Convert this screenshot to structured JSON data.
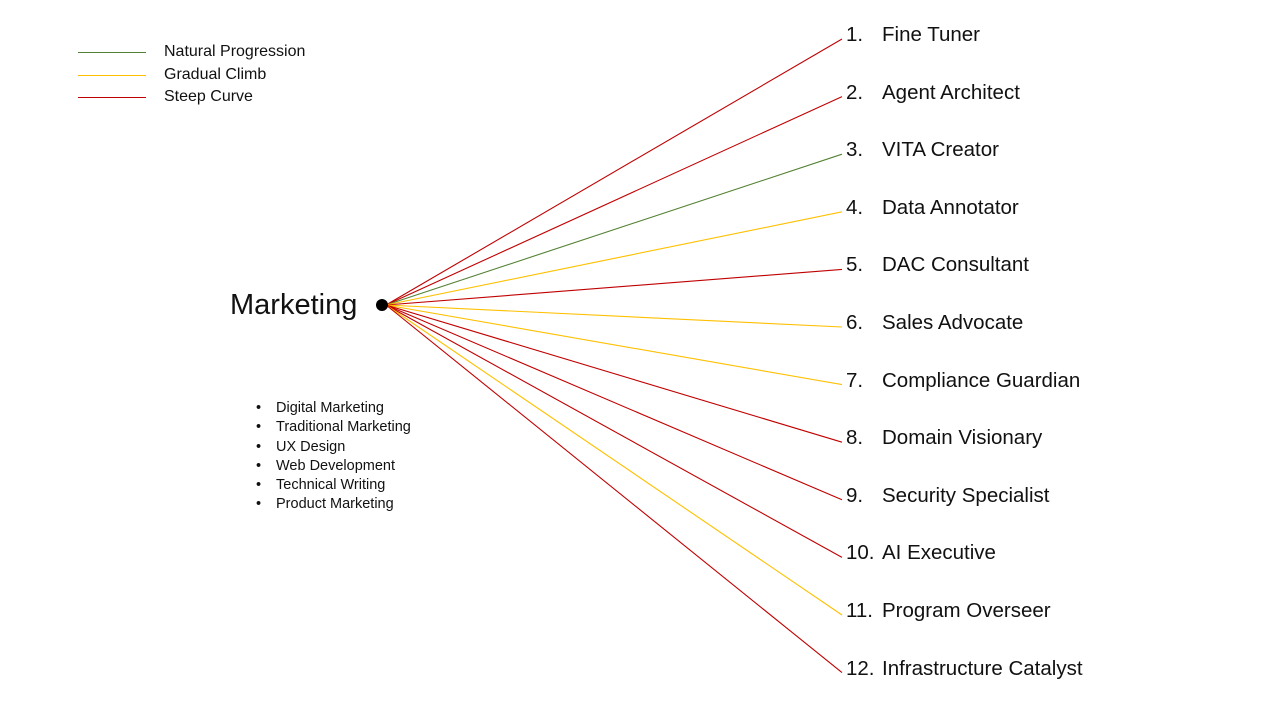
{
  "legend": [
    {
      "label": "Natural Progression",
      "color": "#548235"
    },
    {
      "label": "Gradual Climb",
      "color": "#FFC000"
    },
    {
      "label": "Steep Curve",
      "color": "#C00000"
    }
  ],
  "center": {
    "label": "Marketing"
  },
  "skills": {
    "bullet": "•",
    "items": [
      "Digital Marketing",
      "Traditional Marketing",
      "UX Design",
      "Web Development",
      "Technical Writing",
      "Product Marketing"
    ]
  },
  "roles": [
    {
      "number": "1.",
      "name": "Fine Tuner",
      "curve": "Steep Curve"
    },
    {
      "number": "2.",
      "name": "Agent Architect",
      "curve": "Steep Curve"
    },
    {
      "number": "3.",
      "name": "VITA Creator",
      "curve": "Natural Progression"
    },
    {
      "number": "4.",
      "name": "Data Annotator",
      "curve": "Gradual Climb"
    },
    {
      "number": "5.",
      "name": "DAC Consultant",
      "curve": "Steep Curve"
    },
    {
      "number": "6.",
      "name": "Sales Advocate",
      "curve": "Gradual Climb"
    },
    {
      "number": "7.",
      "name": "Compliance Guardian",
      "curve": "Gradual Climb"
    },
    {
      "number": "8.",
      "name": "Domain Visionary",
      "curve": "Steep Curve"
    },
    {
      "number": "9.",
      "name": "Security Specialist",
      "curve": "Steep Curve"
    },
    {
      "number": "10.",
      "name": "AI Executive",
      "curve": "Steep Curve"
    },
    {
      "number": "11.",
      "name": "Program Overseer",
      "curve": "Gradual Climb"
    },
    {
      "number": "12.",
      "name": "Infrastructure Catalyst",
      "curve": "Steep Curve"
    }
  ]
}
